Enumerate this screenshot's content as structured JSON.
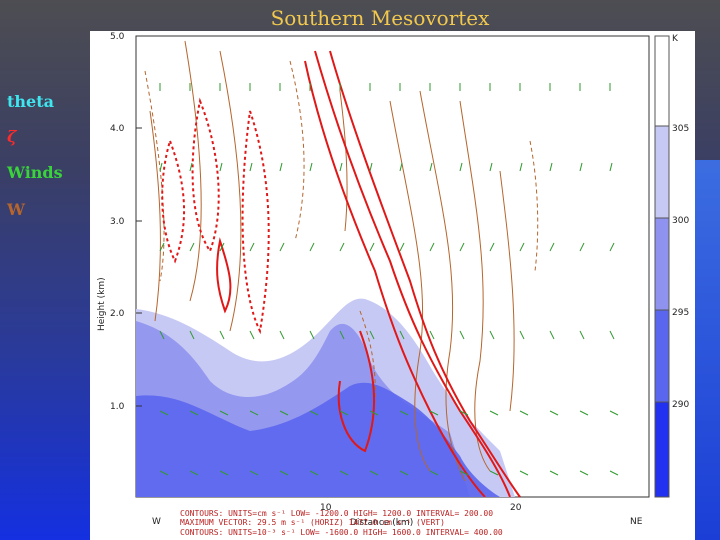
{
  "slide": {
    "title": "Southern Mesovortex",
    "legend": {
      "theta": "theta",
      "zeta": "ζ",
      "winds": "Winds",
      "w": "W"
    }
  },
  "plot": {
    "ylabel": "Height (km)",
    "xlabel": "Distance (km)",
    "y_ticks": [
      "5.0",
      "4.0",
      "3.0",
      "2.0",
      "1.0"
    ],
    "x_ticks": [
      "10",
      "20"
    ],
    "left_dir": "W",
    "right_dir": "NE",
    "colorbar": {
      "unit": "K",
      "ticks": [
        "305",
        "300",
        "295",
        "290"
      ]
    },
    "footer": {
      "line1": "CONTOURS:   UNITS=cm s⁻¹   LOW=  -1200.0      HIGH=   1200.0      INTERVAL=    200.00",
      "line2": "MAXIMUM VECTOR:  29.5 m s⁻¹ (HORIZ)       1477.0  cm s⁻¹  (VERT)",
      "line3": "CONTOURS:   UNITS=10⁻³ s⁻¹   LOW=  -1600.0      HIGH=   1600.0      INTERVAL=    400.00"
    }
  },
  "colors": {
    "title": "#f2c94c",
    "theta": "#3fe6f0",
    "zeta": "#ff2a2a",
    "winds": "#39d33a",
    "w": "#b5652d",
    "fill_light": "#c7c9f5",
    "fill_mid": "#8f92ee",
    "fill_dark": "#5b66ee"
  }
}
